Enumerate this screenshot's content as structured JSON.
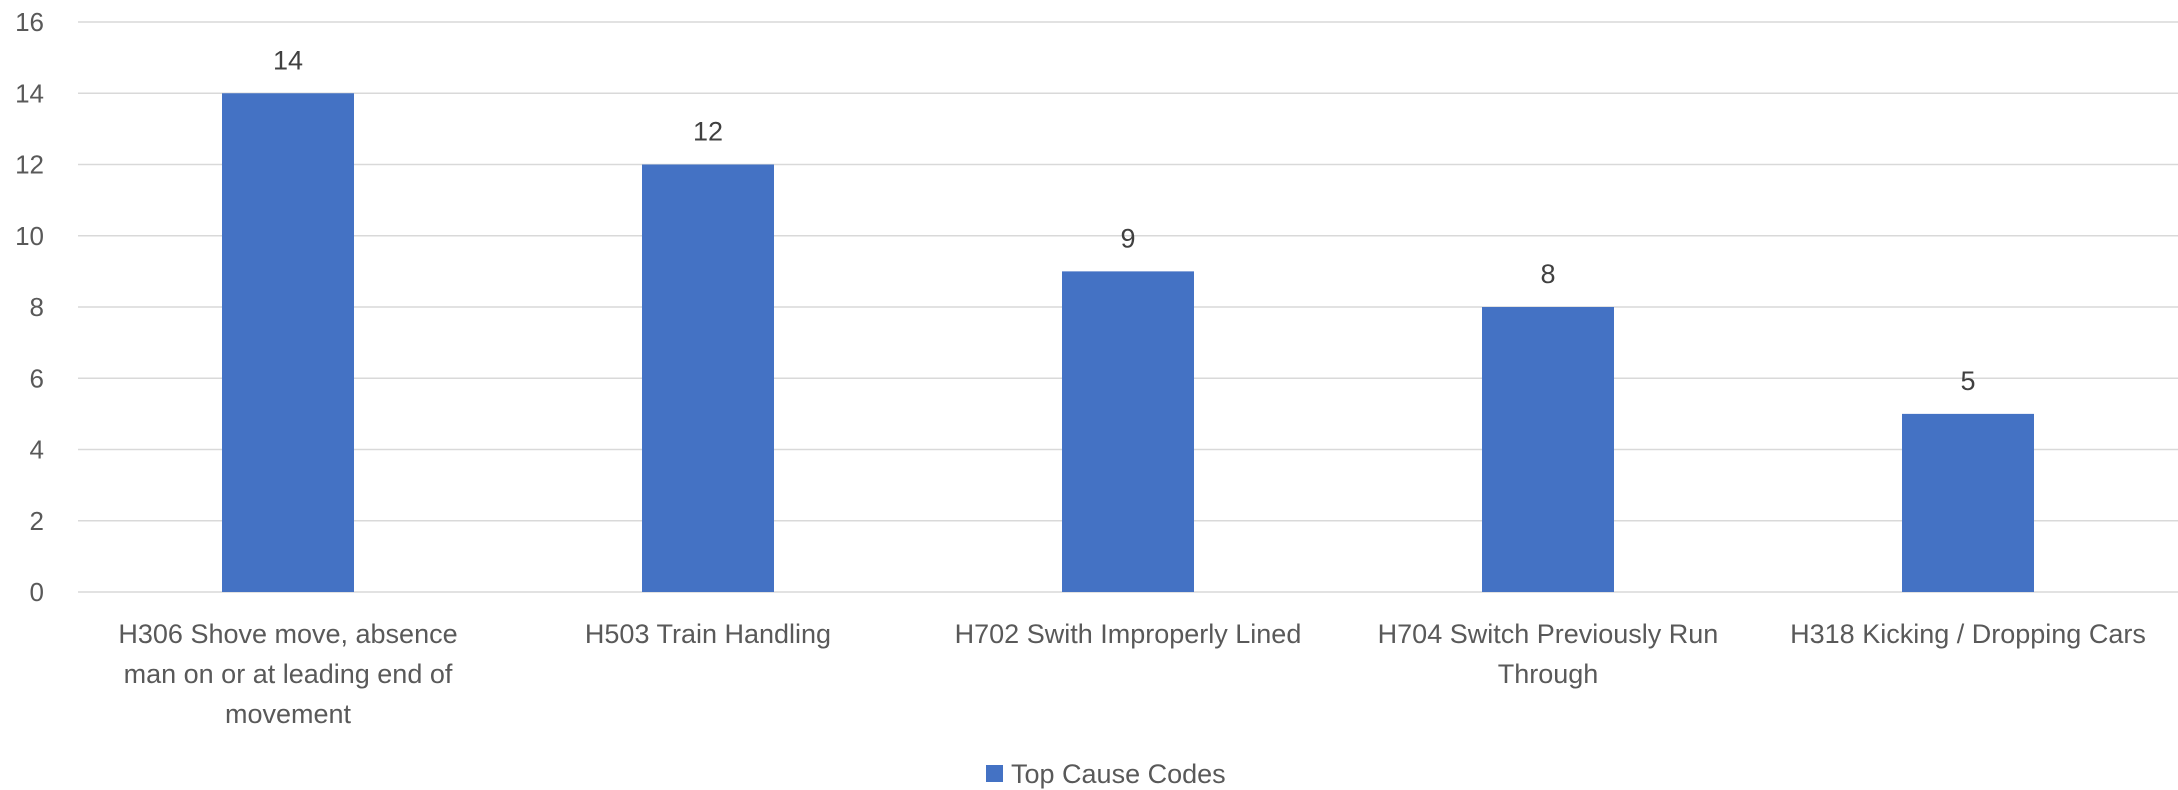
{
  "chart_data": {
    "type": "bar",
    "categories": [
      [
        "H306 Shove move, absence",
        "man on or at leading end of",
        "movement"
      ],
      [
        "H503 Train Handling"
      ],
      [
        "H702 Swith Improperly Lined"
      ],
      [
        "H704 Switch Previously Run",
        "Through"
      ],
      [
        "H318 Kicking / Dropping Cars"
      ]
    ],
    "series": [
      {
        "name": "Top Cause Codes",
        "values": [
          14,
          12,
          9,
          8,
          5
        ],
        "color": "#4472C4"
      }
    ],
    "ylim": [
      0,
      16
    ],
    "yticks": [
      0,
      2,
      4,
      6,
      8,
      10,
      12,
      14,
      16
    ],
    "grid": true,
    "data_labels": true,
    "legend_position": "bottom"
  }
}
